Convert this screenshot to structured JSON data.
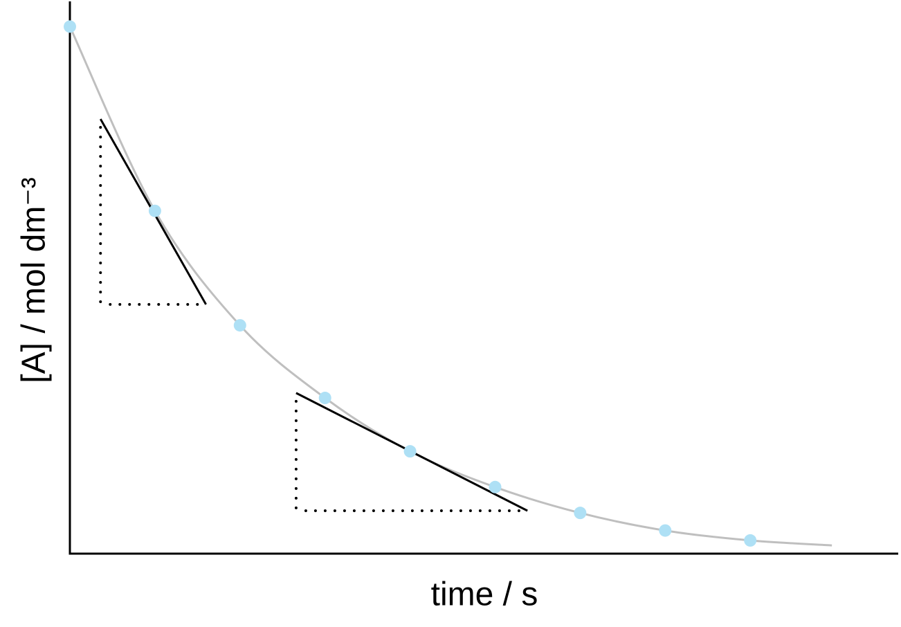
{
  "chart_data": {
    "type": "scatter",
    "x_label": "time / s",
    "y_label": "[A] / mol dm⁻³",
    "xlim": [
      0,
      9.74
    ],
    "ylim": [
      0,
      10
    ],
    "points": {
      "color": "#aee0f5",
      "x": [
        0,
        1,
        2,
        3,
        4,
        5,
        6,
        7,
        8
      ],
      "values": [
        9.58,
        6.23,
        4.15,
        2.83,
        1.86,
        1.21,
        0.74,
        0.42,
        0.24
      ]
    },
    "curve": {
      "color": "#bfbfbf",
      "x": [
        0,
        1,
        2,
        3,
        4,
        5,
        6,
        7,
        8,
        8.96
      ],
      "values": [
        9.58,
        6.23,
        4.15,
        2.83,
        1.86,
        1.21,
        0.74,
        0.42,
        0.24,
        0.15
      ]
    },
    "tangents": [
      {
        "x": [
          0.36,
          1.6
        ],
        "values": [
          7.9,
          4.53
        ]
      },
      {
        "x": [
          2.66,
          5.38
        ],
        "values": [
          2.92,
          0.78
        ]
      }
    ]
  }
}
